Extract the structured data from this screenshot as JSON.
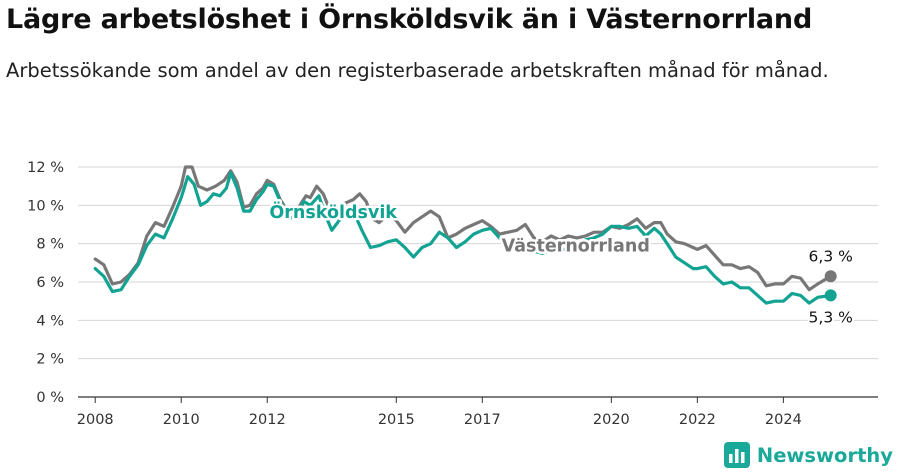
{
  "header": {
    "title": "Lägre arbetslöshet i Örnsköldsvik än i Västernorrland",
    "subtitle": "Arbetssökande som andel av den registerbaserade arbetskraften månad för månad."
  },
  "footer": {
    "brand": "Newsworthy",
    "logo_icon": "newsworthy-logo-icon",
    "brand_color": "#1aa898"
  },
  "chart_data": {
    "type": "line",
    "title": "Lägre arbetslöshet i Örnsköldsvik än i Västernorrland",
    "subtitle": "Arbetssökande som andel av den registerbaserade arbetskraften månad för månad.",
    "xlabel": "",
    "ylabel": "",
    "x_range": [
      2007.6,
      2026.2
    ],
    "ylim": [
      0,
      12
    ],
    "y_ticks": [
      0,
      2,
      4,
      6,
      8,
      10,
      12
    ],
    "y_tick_labels": [
      "0 %",
      "2 %",
      "4 %",
      "6 %",
      "8 %",
      "10 %",
      "12 %"
    ],
    "x_ticks": [
      2008,
      2010,
      2012,
      2015,
      2017,
      2020,
      2022,
      2024
    ],
    "x_tick_labels": [
      "2008",
      "2010",
      "2012",
      "2015",
      "2017",
      "2020",
      "2022",
      "2024"
    ],
    "grid": "horizontal",
    "legend": "inline labels",
    "end_labels": [
      "6,3 %",
      "5,3 %"
    ],
    "series": [
      {
        "name": "Västernorrland",
        "color": "#777777",
        "points": [
          [
            2008.0,
            7.2
          ],
          [
            2008.2,
            6.9
          ],
          [
            2008.4,
            5.9
          ],
          [
            2008.6,
            6.0
          ],
          [
            2008.8,
            6.4
          ],
          [
            2009.0,
            7.0
          ],
          [
            2009.2,
            8.4
          ],
          [
            2009.4,
            9.1
          ],
          [
            2009.6,
            8.9
          ],
          [
            2009.8,
            9.9
          ],
          [
            2010.0,
            11.0
          ],
          [
            2010.1,
            12.0
          ],
          [
            2010.25,
            12.0
          ],
          [
            2010.4,
            11.0
          ],
          [
            2010.6,
            10.8
          ],
          [
            2010.8,
            11.0
          ],
          [
            2011.0,
            11.3
          ],
          [
            2011.15,
            11.8
          ],
          [
            2011.3,
            11.2
          ],
          [
            2011.45,
            9.9
          ],
          [
            2011.6,
            10.0
          ],
          [
            2011.75,
            10.6
          ],
          [
            2011.9,
            10.9
          ],
          [
            2012.0,
            11.3
          ],
          [
            2012.15,
            11.1
          ],
          [
            2012.3,
            10.3
          ],
          [
            2012.5,
            9.6
          ],
          [
            2012.7,
            9.8
          ],
          [
            2012.9,
            10.5
          ],
          [
            2013.0,
            10.4
          ],
          [
            2013.15,
            11.0
          ],
          [
            2013.3,
            10.6
          ],
          [
            2013.45,
            9.8
          ],
          [
            2013.6,
            9.6
          ],
          [
            2013.8,
            10.1
          ],
          [
            2014.0,
            10.3
          ],
          [
            2014.15,
            10.6
          ],
          [
            2014.3,
            10.2
          ],
          [
            2014.45,
            9.3
          ],
          [
            2014.6,
            9.1
          ],
          [
            2014.8,
            9.5
          ],
          [
            2015.0,
            9.2
          ],
          [
            2015.2,
            8.6
          ],
          [
            2015.4,
            9.1
          ],
          [
            2015.6,
            9.4
          ],
          [
            2015.8,
            9.7
          ],
          [
            2016.0,
            9.4
          ],
          [
            2016.2,
            8.3
          ],
          [
            2016.4,
            8.5
          ],
          [
            2016.6,
            8.8
          ],
          [
            2016.8,
            9.0
          ],
          [
            2017.0,
            9.2
          ],
          [
            2017.2,
            8.9
          ],
          [
            2017.4,
            8.5
          ],
          [
            2017.6,
            8.6
          ],
          [
            2017.8,
            8.7
          ],
          [
            2018.0,
            9.0
          ],
          [
            2018.2,
            8.3
          ],
          [
            2018.4,
            8.1
          ],
          [
            2018.6,
            8.4
          ],
          [
            2018.8,
            8.2
          ],
          [
            2019.0,
            8.4
          ],
          [
            2019.2,
            8.3
          ],
          [
            2019.4,
            8.4
          ],
          [
            2019.6,
            8.6
          ],
          [
            2019.8,
            8.6
          ],
          [
            2020.0,
            8.9
          ],
          [
            2020.2,
            8.8
          ],
          [
            2020.4,
            9.0
          ],
          [
            2020.6,
            9.3
          ],
          [
            2020.8,
            8.8
          ],
          [
            2021.0,
            9.1
          ],
          [
            2021.15,
            9.1
          ],
          [
            2021.3,
            8.5
          ],
          [
            2021.5,
            8.1
          ],
          [
            2021.7,
            8.0
          ],
          [
            2021.9,
            7.8
          ],
          [
            2022.0,
            7.7
          ],
          [
            2022.2,
            7.9
          ],
          [
            2022.4,
            7.4
          ],
          [
            2022.6,
            6.9
          ],
          [
            2022.8,
            6.9
          ],
          [
            2023.0,
            6.7
          ],
          [
            2023.2,
            6.8
          ],
          [
            2023.4,
            6.5
          ],
          [
            2023.6,
            5.8
          ],
          [
            2023.8,
            5.9
          ],
          [
            2024.0,
            5.9
          ],
          [
            2024.2,
            6.3
          ],
          [
            2024.4,
            6.2
          ],
          [
            2024.6,
            5.6
          ],
          [
            2024.8,
            5.9
          ],
          [
            2025.1,
            6.3
          ]
        ]
      },
      {
        "name": "Örnsköldsvik",
        "color": "#13a393",
        "points": [
          [
            2008.0,
            6.7
          ],
          [
            2008.2,
            6.3
          ],
          [
            2008.4,
            5.5
          ],
          [
            2008.6,
            5.6
          ],
          [
            2008.8,
            6.3
          ],
          [
            2009.0,
            6.9
          ],
          [
            2009.2,
            7.9
          ],
          [
            2009.4,
            8.5
          ],
          [
            2009.6,
            8.3
          ],
          [
            2009.8,
            9.3
          ],
          [
            2010.0,
            10.4
          ],
          [
            2010.15,
            11.5
          ],
          [
            2010.3,
            11.1
          ],
          [
            2010.45,
            10.0
          ],
          [
            2010.6,
            10.2
          ],
          [
            2010.75,
            10.6
          ],
          [
            2010.9,
            10.5
          ],
          [
            2011.05,
            10.9
          ],
          [
            2011.15,
            11.7
          ],
          [
            2011.3,
            10.9
          ],
          [
            2011.45,
            9.7
          ],
          [
            2011.6,
            9.7
          ],
          [
            2011.75,
            10.3
          ],
          [
            2011.9,
            10.7
          ],
          [
            2012.0,
            11.1
          ],
          [
            2012.15,
            11.0
          ],
          [
            2012.3,
            10.2
          ],
          [
            2012.5,
            9.3
          ],
          [
            2012.7,
            9.5
          ],
          [
            2012.85,
            10.2
          ],
          [
            2013.0,
            10.0
          ],
          [
            2013.2,
            10.5
          ],
          [
            2013.35,
            9.5
          ],
          [
            2013.5,
            8.7
          ],
          [
            2013.7,
            9.3
          ],
          [
            2013.9,
            9.5
          ],
          [
            2014.0,
            9.7
          ],
          [
            2014.2,
            8.7
          ],
          [
            2014.4,
            7.8
          ],
          [
            2014.6,
            7.9
          ],
          [
            2014.8,
            8.1
          ],
          [
            2015.0,
            8.2
          ],
          [
            2015.2,
            7.8
          ],
          [
            2015.4,
            7.3
          ],
          [
            2015.6,
            7.8
          ],
          [
            2015.8,
            8.0
          ],
          [
            2016.0,
            8.6
          ],
          [
            2016.2,
            8.3
          ],
          [
            2016.4,
            7.8
          ],
          [
            2016.6,
            8.1
          ],
          [
            2016.8,
            8.5
          ],
          [
            2017.0,
            8.7
          ],
          [
            2017.2,
            8.8
          ],
          [
            2017.4,
            8.3
          ],
          [
            2017.6,
            7.9
          ],
          [
            2017.8,
            7.8
          ],
          [
            2018.0,
            7.9
          ],
          [
            2018.2,
            7.6
          ],
          [
            2018.4,
            7.5
          ],
          [
            2018.6,
            7.7
          ],
          [
            2018.8,
            7.6
          ],
          [
            2019.0,
            7.8
          ],
          [
            2019.2,
            7.9
          ],
          [
            2019.4,
            8.2
          ],
          [
            2019.6,
            8.3
          ],
          [
            2019.8,
            8.5
          ],
          [
            2020.0,
            8.9
          ],
          [
            2020.2,
            8.9
          ],
          [
            2020.4,
            8.8
          ],
          [
            2020.6,
            8.9
          ],
          [
            2020.8,
            8.4
          ],
          [
            2021.0,
            8.8
          ],
          [
            2021.15,
            8.5
          ],
          [
            2021.3,
            8.0
          ],
          [
            2021.5,
            7.3
          ],
          [
            2021.7,
            7.0
          ],
          [
            2021.9,
            6.7
          ],
          [
            2022.0,
            6.7
          ],
          [
            2022.2,
            6.8
          ],
          [
            2022.4,
            6.3
          ],
          [
            2022.6,
            5.9
          ],
          [
            2022.8,
            6.0
          ],
          [
            2023.0,
            5.7
          ],
          [
            2023.2,
            5.7
          ],
          [
            2023.4,
            5.3
          ],
          [
            2023.6,
            4.9
          ],
          [
            2023.8,
            5.0
          ],
          [
            2024.0,
            5.0
          ],
          [
            2024.2,
            5.4
          ],
          [
            2024.4,
            5.3
          ],
          [
            2024.6,
            4.9
          ],
          [
            2024.8,
            5.2
          ],
          [
            2025.1,
            5.3
          ]
        ]
      }
    ]
  }
}
